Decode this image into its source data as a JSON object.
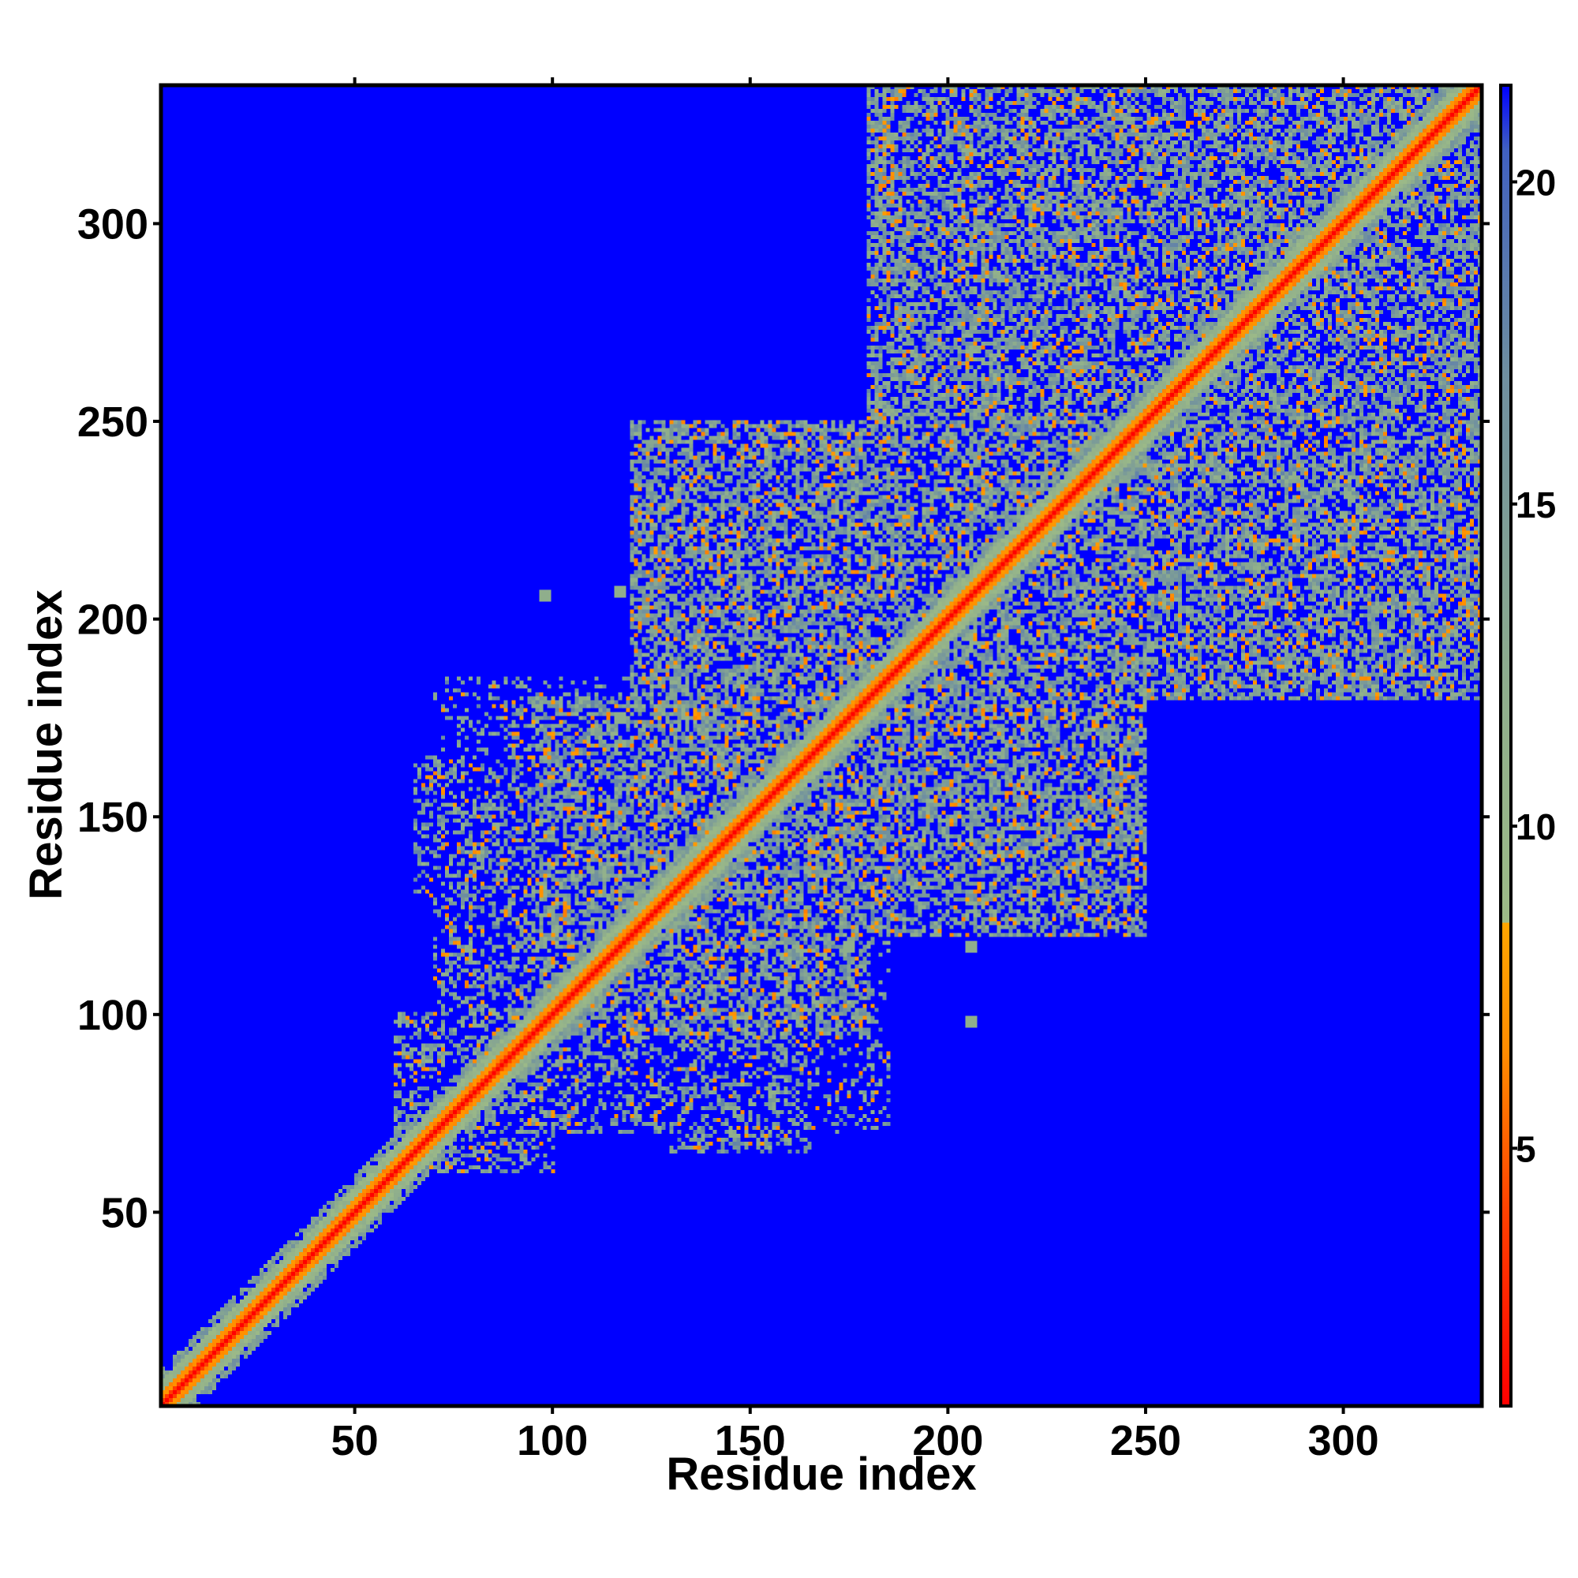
{
  "chart_data": {
    "type": "heatmap",
    "title": "",
    "xlabel": "Residue index",
    "ylabel": "Residue index",
    "xlim": [
      1,
      335
    ],
    "ylim": [
      1,
      335
    ],
    "x_ticks": [
      50,
      100,
      150,
      200,
      250,
      300
    ],
    "y_ticks": [
      50,
      100,
      150,
      200,
      250,
      300
    ],
    "colorbar": {
      "range": [
        1,
        21.5
      ],
      "ticks": [
        5,
        10,
        15,
        20
      ],
      "stops": [
        {
          "value": 1,
          "color": "#ff0000"
        },
        {
          "value": 4,
          "color": "#ff4000"
        },
        {
          "value": 6.5,
          "color": "#ff8c00"
        },
        {
          "value": 8.5,
          "color": "#ffa500"
        },
        {
          "value": 8.5,
          "color": "#9dbb87"
        },
        {
          "value": 12,
          "color": "#8fae8c"
        },
        {
          "value": 17,
          "color": "#6f8fa0"
        },
        {
          "value": 20.5,
          "color": "#4060c0"
        },
        {
          "value": 21.5,
          "color": "#0000ff"
        }
      ]
    },
    "background_color": "#0000ff",
    "diagonal": {
      "core_color": "#ff0000",
      "inner_color": "#ff6a00",
      "halo_color": "#9dbb87"
    },
    "contact_regions": [
      {
        "i": [
          60,
          100
        ],
        "j": [
          60,
          100
        ],
        "level": "medium"
      },
      {
        "i": [
          95,
          180
        ],
        "j": [
          95,
          180
        ],
        "level": "dense"
      },
      {
        "i": [
          120,
          250
        ],
        "j": [
          120,
          250
        ],
        "level": "dense"
      },
      {
        "i": [
          180,
          335
        ],
        "j": [
          180,
          335
        ],
        "level": "dense"
      },
      {
        "i": [
          230,
          335
        ],
        "j": [
          230,
          335
        ],
        "level": "dense"
      },
      {
        "i": [
          65,
          95
        ],
        "j": [
          130,
          165
        ],
        "level": "medium"
      },
      {
        "i": [
          90,
          120
        ],
        "j": [
          160,
          180
        ],
        "level": "medium"
      },
      {
        "i": [
          100,
          130
        ],
        "j": [
          90,
          120
        ],
        "level": "medium"
      },
      {
        "i": [
          100,
          160
        ],
        "j": [
          70,
          100
        ],
        "level": "medium"
      },
      {
        "i": [
          145,
          160
        ],
        "j": [
          70,
          120
        ],
        "level": "medium"
      },
      {
        "i": [
          160,
          185
        ],
        "j": [
          70,
          125
        ],
        "level": "sparse"
      },
      {
        "i": [
          170,
          185
        ],
        "j": [
          105,
          125
        ],
        "level": "medium"
      },
      {
        "i": [
          130,
          160
        ],
        "j": [
          150,
          210
        ],
        "level": "medium"
      },
      {
        "i": [
          155,
          210
        ],
        "j": [
          130,
          185
        ],
        "level": "medium"
      },
      {
        "i": [
          195,
          240
        ],
        "j": [
          165,
          205
        ],
        "level": "sparse"
      },
      {
        "i": [
          200,
          280
        ],
        "j": [
          190,
          260
        ],
        "level": "medium"
      },
      {
        "i": [
          230,
          310
        ],
        "j": [
          180,
          260
        ],
        "level": "medium"
      },
      {
        "i": [
          250,
          335
        ],
        "j": [
          230,
          335
        ],
        "level": "medium"
      },
      {
        "i": [
          280,
          335
        ],
        "j": [
          250,
          300
        ],
        "level": "sparse"
      },
      {
        "i": [
          220,
          290
        ],
        "j": [
          270,
          335
        ],
        "level": "sparse"
      }
    ],
    "isolated_patches": [
      {
        "i": 206,
        "j": 117
      },
      {
        "i": 206,
        "j": 98
      },
      {
        "i": 117,
        "j": 207
      },
      {
        "i": 98,
        "j": 206
      },
      {
        "i": 117,
        "j": 175
      },
      {
        "i": 175,
        "j": 117
      }
    ]
  }
}
